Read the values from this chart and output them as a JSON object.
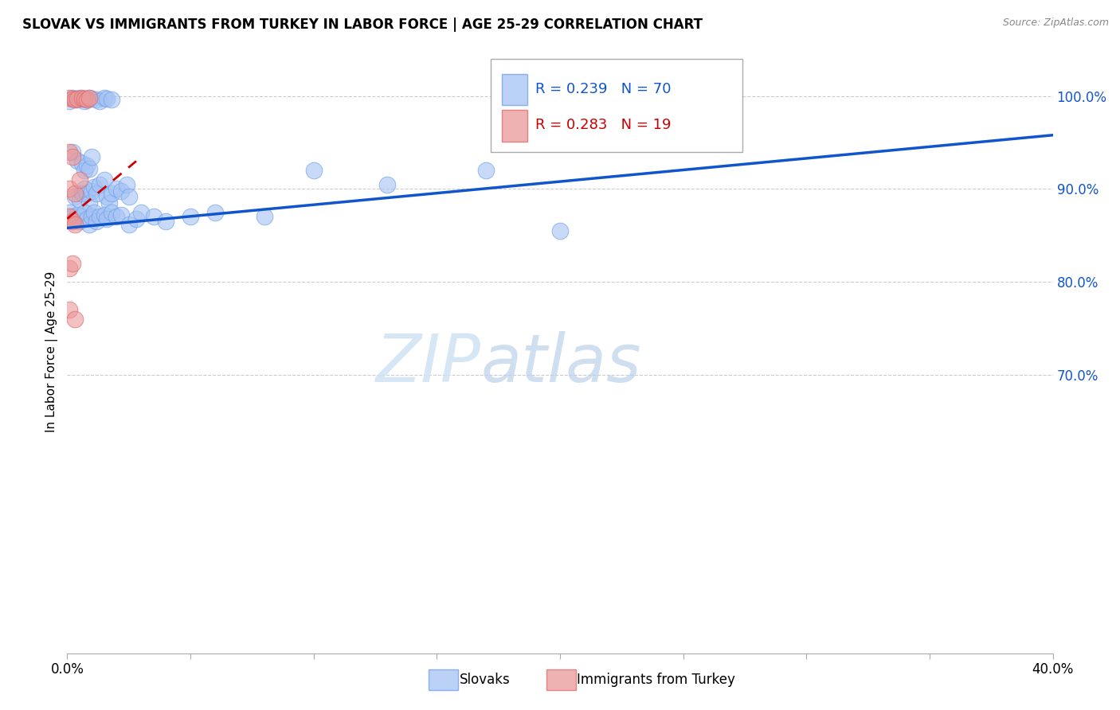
{
  "title": "SLOVAK VS IMMIGRANTS FROM TURKEY IN LABOR FORCE | AGE 25-29 CORRELATION CHART",
  "source": "Source: ZipAtlas.com",
  "ylabel": "In Labor Force | Age 25-29",
  "legend_blue_label": "Slovaks",
  "legend_pink_label": "Immigrants from Turkey",
  "blue_color": "#a4c2f4",
  "blue_edge_color": "#6d9eeb",
  "pink_color": "#ea9999",
  "pink_edge_color": "#e06666",
  "blue_line_color": "#1155cc",
  "pink_line_color": "#cc0000",
  "watermark_color": "#cfe2f3",
  "xlim": [
    0.0,
    0.4
  ],
  "ylim": [
    0.4,
    1.05
  ],
  "xticks": [
    0.0,
    0.05,
    0.1,
    0.15,
    0.2,
    0.25,
    0.3,
    0.35,
    0.4
  ],
  "yticks_right": [
    1.0,
    0.9,
    0.8,
    0.7
  ],
  "figsize": [
    14.06,
    8.92
  ],
  "dpi": 100,
  "blue_scatter": [
    [
      0.001,
      0.995
    ],
    [
      0.002,
      0.998
    ],
    [
      0.003,
      0.997
    ],
    [
      0.004,
      0.996
    ],
    [
      0.005,
      0.998
    ],
    [
      0.006,
      0.997
    ],
    [
      0.007,
      0.995
    ],
    [
      0.008,
      0.996
    ],
    [
      0.009,
      0.998
    ],
    [
      0.01,
      0.997
    ],
    [
      0.012,
      0.996
    ],
    [
      0.013,
      0.995
    ],
    [
      0.015,
      0.998
    ],
    [
      0.016,
      0.997
    ],
    [
      0.018,
      0.996
    ],
    [
      0.002,
      0.94
    ],
    [
      0.004,
      0.93
    ],
    [
      0.006,
      0.928
    ],
    [
      0.007,
      0.92
    ],
    [
      0.008,
      0.925
    ],
    [
      0.009,
      0.922
    ],
    [
      0.01,
      0.935
    ],
    [
      0.003,
      0.892
    ],
    [
      0.005,
      0.888
    ],
    [
      0.006,
      0.895
    ],
    [
      0.007,
      0.9
    ],
    [
      0.008,
      0.895
    ],
    [
      0.009,
      0.885
    ],
    [
      0.01,
      0.898
    ],
    [
      0.011,
      0.902
    ],
    [
      0.012,
      0.895
    ],
    [
      0.013,
      0.905
    ],
    [
      0.015,
      0.91
    ],
    [
      0.016,
      0.892
    ],
    [
      0.017,
      0.885
    ],
    [
      0.018,
      0.895
    ],
    [
      0.02,
      0.9
    ],
    [
      0.022,
      0.898
    ],
    [
      0.024,
      0.905
    ],
    [
      0.025,
      0.892
    ],
    [
      0.001,
      0.875
    ],
    [
      0.002,
      0.87
    ],
    [
      0.003,
      0.868
    ],
    [
      0.004,
      0.872
    ],
    [
      0.005,
      0.865
    ],
    [
      0.006,
      0.87
    ],
    [
      0.007,
      0.875
    ],
    [
      0.008,
      0.868
    ],
    [
      0.009,
      0.862
    ],
    [
      0.01,
      0.87
    ],
    [
      0.011,
      0.875
    ],
    [
      0.012,
      0.865
    ],
    [
      0.013,
      0.87
    ],
    [
      0.015,
      0.872
    ],
    [
      0.016,
      0.868
    ],
    [
      0.018,
      0.875
    ],
    [
      0.02,
      0.87
    ],
    [
      0.022,
      0.872
    ],
    [
      0.025,
      0.862
    ],
    [
      0.028,
      0.868
    ],
    [
      0.03,
      0.875
    ],
    [
      0.035,
      0.87
    ],
    [
      0.04,
      0.865
    ],
    [
      0.05,
      0.87
    ],
    [
      0.06,
      0.875
    ],
    [
      0.08,
      0.87
    ],
    [
      0.1,
      0.92
    ],
    [
      0.13,
      0.905
    ],
    [
      0.17,
      0.92
    ],
    [
      0.2,
      0.855
    ]
  ],
  "pink_scatter": [
    [
      0.001,
      0.998
    ],
    [
      0.002,
      0.997
    ],
    [
      0.003,
      0.996
    ],
    [
      0.004,
      0.997
    ],
    [
      0.006,
      0.998
    ],
    [
      0.007,
      0.997
    ],
    [
      0.008,
      0.996
    ],
    [
      0.009,
      0.998
    ],
    [
      0.001,
      0.94
    ],
    [
      0.002,
      0.935
    ],
    [
      0.001,
      0.9
    ],
    [
      0.003,
      0.895
    ],
    [
      0.005,
      0.91
    ],
    [
      0.001,
      0.87
    ],
    [
      0.002,
      0.865
    ],
    [
      0.003,
      0.862
    ],
    [
      0.001,
      0.815
    ],
    [
      0.002,
      0.82
    ],
    [
      0.001,
      0.77
    ],
    [
      0.003,
      0.76
    ]
  ]
}
